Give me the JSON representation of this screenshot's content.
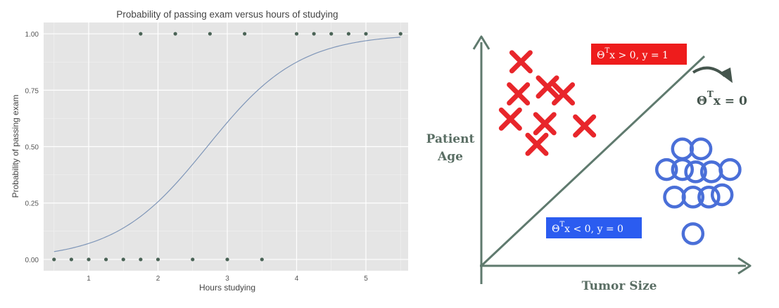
{
  "chart_data": [
    {
      "type": "scatter",
      "title": "Probability of passing exam versus hours of studying",
      "xlabel": "Hours studying",
      "ylabel": "Probability of passing exam",
      "xlim": [
        0.35,
        5.65
      ],
      "ylim": [
        -0.05,
        1.05
      ],
      "xticks": [
        1,
        2,
        3,
        4,
        5
      ],
      "yticks": [
        0.0,
        0.25,
        0.5,
        0.75,
        1.0
      ],
      "xtick_labels": [
        "1",
        "2",
        "3",
        "4",
        "5"
      ],
      "ytick_labels": [
        "0.00",
        "0.25",
        "0.50",
        "0.75",
        "1.00"
      ],
      "grid": true,
      "background_color": "#e5e5e5",
      "points": [
        {
          "x": 0.5,
          "y": 0
        },
        {
          "x": 0.75,
          "y": 0
        },
        {
          "x": 1.0,
          "y": 0
        },
        {
          "x": 1.25,
          "y": 0
        },
        {
          "x": 1.5,
          "y": 0
        },
        {
          "x": 1.75,
          "y": 0
        },
        {
          "x": 1.75,
          "y": 1
        },
        {
          "x": 2.0,
          "y": 0
        },
        {
          "x": 2.25,
          "y": 1
        },
        {
          "x": 2.5,
          "y": 0
        },
        {
          "x": 2.75,
          "y": 1
        },
        {
          "x": 3.0,
          "y": 0
        },
        {
          "x": 3.25,
          "y": 1
        },
        {
          "x": 3.5,
          "y": 0
        },
        {
          "x": 4.0,
          "y": 1
        },
        {
          "x": 4.25,
          "y": 1
        },
        {
          "x": 4.5,
          "y": 1
        },
        {
          "x": 4.75,
          "y": 1
        },
        {
          "x": 5.0,
          "y": 1
        },
        {
          "x": 5.5,
          "y": 1
        }
      ],
      "point_color": "#4a6356",
      "curve": {
        "type": "logistic",
        "intercept": -4.0777,
        "slope": 1.5046,
        "x_range": [
          0.5,
          5.5
        ],
        "color": "#7f96b8"
      }
    },
    {
      "type": "scatter",
      "xlabel": "Tumor Size",
      "ylabel_lines": [
        "Patient",
        "Age"
      ],
      "axis_color": "#5f7a6e",
      "decision_boundary": {
        "label_base": "Θ",
        "label_sup": "T",
        "label_tail": "x = 0",
        "color": "#45554d"
      },
      "positive_label": {
        "base": "Θ",
        "sup": "T",
        "tail": "x > 0, y = 1",
        "bg": "#ee1c1c",
        "color": "#ffffff"
      },
      "negative_label": {
        "base": "Θ",
        "sup": "T",
        "tail": "x < 0, y = 0",
        "bg": "#2b5cf0",
        "color": "#ffffff"
      },
      "positive_class": {
        "marker": "x",
        "color": "#e8262b",
        "points": [
          {
            "x": 0.15,
            "y": 0.89
          },
          {
            "x": 0.14,
            "y": 0.75
          },
          {
            "x": 0.25,
            "y": 0.78
          },
          {
            "x": 0.31,
            "y": 0.75
          },
          {
            "x": 0.11,
            "y": 0.64
          },
          {
            "x": 0.24,
            "y": 0.62
          },
          {
            "x": 0.39,
            "y": 0.61
          },
          {
            "x": 0.21,
            "y": 0.53
          }
        ]
      },
      "negative_class": {
        "marker": "o",
        "color": "#4a6fd8",
        "points": [
          {
            "x": 0.76,
            "y": 0.51
          },
          {
            "x": 0.83,
            "y": 0.51
          },
          {
            "x": 0.7,
            "y": 0.42
          },
          {
            "x": 0.76,
            "y": 0.42
          },
          {
            "x": 0.81,
            "y": 0.41
          },
          {
            "x": 0.87,
            "y": 0.41
          },
          {
            "x": 0.94,
            "y": 0.42
          },
          {
            "x": 0.73,
            "y": 0.3
          },
          {
            "x": 0.8,
            "y": 0.3
          },
          {
            "x": 0.86,
            "y": 0.3
          },
          {
            "x": 0.91,
            "y": 0.31
          },
          {
            "x": 0.8,
            "y": 0.14
          }
        ]
      }
    }
  ]
}
